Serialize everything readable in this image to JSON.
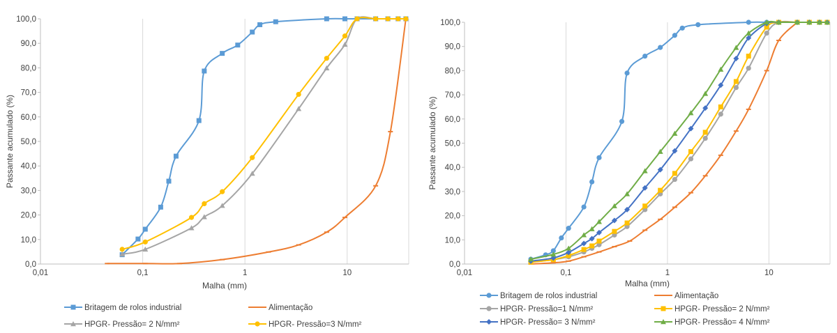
{
  "chart_data": [
    {
      "type": "line",
      "xscale": "log",
      "xlabel": "Malha (mm)",
      "ylabel": "Passante acumulado (%)",
      "xlim": [
        0.01,
        40
      ],
      "ylim": [
        0,
        100
      ],
      "x_ticks": [
        "0,01",
        "0,1",
        "1",
        "10"
      ],
      "y_ticks": [
        "0,0",
        "10,0",
        "20,0",
        "30,0",
        "40,0",
        "50,0",
        "60,0",
        "70,0",
        "80,0",
        "90,0",
        "100,0"
      ],
      "grid": "vertical-only",
      "legend_position": "bottom",
      "series": [
        {
          "name": "Britagem de rolos industrial",
          "color": "#5B9BD5",
          "marker": "square",
          "x": [
            0.063,
            0.09,
            0.106,
            0.15,
            0.18,
            0.212,
            0.355,
            0.4,
            0.6,
            0.85,
            1.18,
            1.4,
            2.0,
            6.3,
            9.5,
            12.5,
            19,
            25,
            31.5,
            37.5
          ],
          "y": [
            3.8,
            10.2,
            14.2,
            23.2,
            33.8,
            44.0,
            58.5,
            78.7,
            85.9,
            89.3,
            94.6,
            97.6,
            98.8,
            100,
            100,
            100,
            100,
            100,
            100,
            100
          ]
        },
        {
          "name": "Alimentação",
          "color": "#ED7D31",
          "marker": "dash",
          "x": [
            0.045,
            0.106,
            0.23,
            0.6,
            1.7,
            3.35,
            6.3,
            9.5,
            19,
            26.5,
            37.5
          ],
          "y": [
            0.2,
            0.2,
            0.2,
            1.8,
            4.9,
            7.8,
            13.0,
            19.0,
            31.9,
            54.0,
            100
          ]
        },
        {
          "name": "HPGR- Pressão= 2 N/mm²",
          "color": "#A5A5A5",
          "marker": "triangle",
          "x": [
            0.063,
            0.106,
            0.3,
            0.4,
            0.6,
            1.18,
            3.35,
            6.3,
            9.5,
            12.5,
            19,
            25,
            31.5,
            37.5
          ],
          "y": [
            4.0,
            6.0,
            14.7,
            19.2,
            23.8,
            36.9,
            63.3,
            79.9,
            89.5,
            100,
            100,
            100,
            100,
            100
          ]
        },
        {
          "name": "HPGR- Pressão=3 N/mm²",
          "color": "#FFC000",
          "marker": "circle",
          "x": [
            0.063,
            0.106,
            0.3,
            0.4,
            0.6,
            1.18,
            3.35,
            6.3,
            9.5,
            12.5,
            19,
            25,
            31.5,
            37.5
          ],
          "y": [
            6.0,
            9.0,
            19.0,
            24.6,
            29.5,
            43.4,
            69.2,
            83.9,
            93.0,
            100,
            100,
            100,
            100,
            100
          ]
        }
      ]
    },
    {
      "type": "line",
      "xscale": "log",
      "xlabel": "Malha (mm)",
      "ylabel": "Passante acumulado (%)",
      "xlim": [
        0.01,
        40
      ],
      "ylim": [
        0,
        100
      ],
      "x_ticks": [
        "0,01",
        "0,1",
        "1",
        "10"
      ],
      "y_ticks": [
        "0,0",
        "10,0",
        "20,0",
        "30,0",
        "40,0",
        "50,0",
        "60,0",
        "70,0",
        "80,0",
        "90,0",
        "100,0"
      ],
      "grid": "vertical-only",
      "legend_position": "bottom",
      "series": [
        {
          "name": "Britagem de rolos industrial",
          "color": "#5B9BD5",
          "marker": "circle",
          "x": [
            0.045,
            0.063,
            0.075,
            0.09,
            0.106,
            0.15,
            0.18,
            0.212,
            0.355,
            0.4,
            0.6,
            0.85,
            1.18,
            1.4,
            2.0,
            6.3,
            9.5,
            12.5
          ],
          "y": [
            2.0,
            3.8,
            5.5,
            10.8,
            14.8,
            23.6,
            34.0,
            44.0,
            59.0,
            79.0,
            86.0,
            89.6,
            94.6,
            97.6,
            99.0,
            100,
            100,
            100
          ]
        },
        {
          "name": "Alimentação",
          "color": "#ED7D31",
          "marker": "dash",
          "x": [
            0.045,
            0.075,
            0.106,
            0.15,
            0.212,
            0.3,
            0.425,
            0.6,
            0.85,
            1.18,
            1.7,
            2.36,
            3.35,
            4.75,
            6.3,
            9.5,
            12.5,
            19
          ],
          "y": [
            0.0,
            0.5,
            1.2,
            3.0,
            5.0,
            7.2,
            9.5,
            14.0,
            18.5,
            23.5,
            29.5,
            36.5,
            45.0,
            55.0,
            64.0,
            80.0,
            92.5,
            100
          ]
        },
        {
          "name": "HPGR- Pressão=1 N/mm²",
          "color": "#A5A5A5",
          "marker": "circle",
          "x": [
            0.045,
            0.075,
            0.106,
            0.15,
            0.18,
            0.212,
            0.3,
            0.4,
            0.6,
            0.85,
            1.18,
            1.7,
            2.36,
            3.35,
            4.75,
            6.3,
            9.5,
            12.5,
            19,
            25,
            31.5,
            37.5
          ],
          "y": [
            0.8,
            1.8,
            3.0,
            5.0,
            6.5,
            8.0,
            12.0,
            15.5,
            22.5,
            29.0,
            35.0,
            43.5,
            52.0,
            62.0,
            73.0,
            81.0,
            95.5,
            100,
            100,
            100,
            100,
            100
          ]
        },
        {
          "name": "HPGR- Pressão= 2 N/mm²",
          "color": "#FFC000",
          "marker": "square",
          "x": [
            0.045,
            0.075,
            0.106,
            0.15,
            0.18,
            0.212,
            0.3,
            0.4,
            0.6,
            0.85,
            1.18,
            1.7,
            2.36,
            3.35,
            4.75,
            6.3,
            9.5,
            12.5,
            19,
            25,
            31.5,
            37.5
          ],
          "y": [
            0.8,
            1.8,
            3.5,
            6.0,
            7.5,
            9.5,
            13.5,
            17.0,
            24.0,
            30.5,
            37.5,
            46.5,
            54.5,
            65.0,
            75.5,
            86.0,
            98.0,
            100,
            100,
            100,
            100,
            100
          ]
        },
        {
          "name": "HPGR- Pressão= 3 N/mm²",
          "color": "#4472C4",
          "marker": "diamond",
          "x": [
            0.045,
            0.075,
            0.106,
            0.15,
            0.18,
            0.212,
            0.3,
            0.4,
            0.6,
            0.85,
            1.18,
            1.7,
            2.36,
            3.35,
            4.75,
            6.3,
            9.5,
            12.5,
            19,
            25,
            31.5,
            37.5
          ],
          "y": [
            1.2,
            2.5,
            4.8,
            8.5,
            10.5,
            13.0,
            18.0,
            22.5,
            31.5,
            39.0,
            46.8,
            56.0,
            64.5,
            74.0,
            85.0,
            93.5,
            99.5,
            100,
            100,
            100,
            100,
            100
          ]
        },
        {
          "name": "HPGR- Pressão= 4 N/mm²",
          "color": "#70AD47",
          "marker": "triangle",
          "x": [
            0.045,
            0.075,
            0.106,
            0.15,
            0.18,
            0.212,
            0.3,
            0.4,
            0.6,
            0.85,
            1.18,
            1.7,
            2.36,
            3.35,
            4.75,
            6.3,
            9.5,
            12.5,
            19,
            25,
            31.5,
            37.5
          ],
          "y": [
            2.0,
            4.0,
            6.5,
            12.0,
            14.5,
            17.5,
            24.0,
            29.0,
            38.5,
            46.5,
            54.0,
            62.5,
            70.5,
            80.5,
            89.5,
            95.5,
            100,
            100,
            100,
            100,
            100,
            100
          ]
        }
      ]
    }
  ]
}
